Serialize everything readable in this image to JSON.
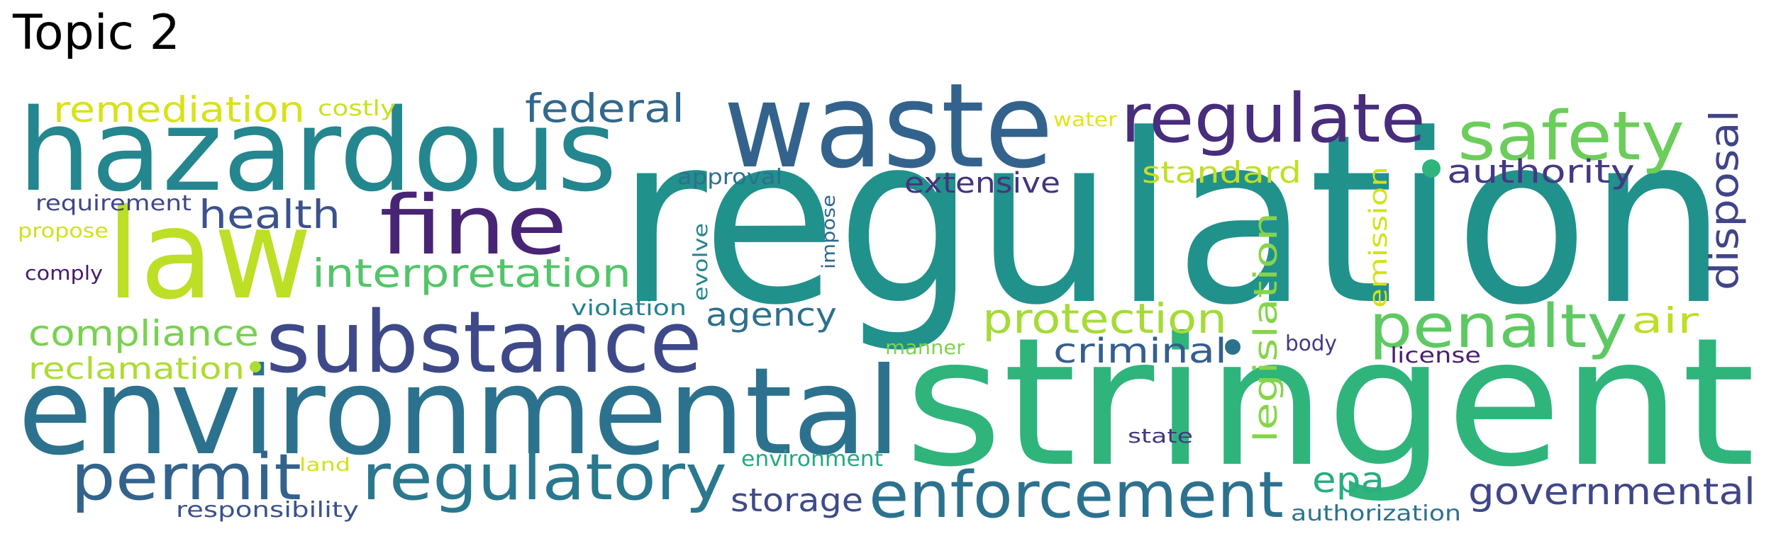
{
  "title": "Topic 2",
  "words": [
    {
      "text": "regulation",
      "color": "#21918c"
    },
    {
      "text": "stringent",
      "color": "#2fb47c"
    },
    {
      "text": "environmental",
      "color": "#2c728e"
    },
    {
      "text": "hazardous",
      "color": "#24868e"
    },
    {
      "text": "waste",
      "color": "#33638d"
    },
    {
      "text": "law",
      "color": "#bddf26"
    },
    {
      "text": "substance",
      "color": "#3e4989"
    },
    {
      "text": "fine",
      "color": "#482475"
    },
    {
      "text": "regulate",
      "color": "#472d7b"
    },
    {
      "text": "safety",
      "color": "#6ccd5a"
    },
    {
      "text": "enforcement",
      "color": "#2c728e"
    },
    {
      "text": "regulatory",
      "color": "#2a788e"
    },
    {
      "text": "permit",
      "color": "#33638d"
    },
    {
      "text": "penalty",
      "color": "#5ec962"
    },
    {
      "text": "federal",
      "color": "#31688e"
    },
    {
      "text": "remediation",
      "color": "#d8e219"
    },
    {
      "text": "interpretation",
      "color": "#52c569"
    },
    {
      "text": "compliance",
      "color": "#7ad151"
    },
    {
      "text": "health",
      "color": "#3b528b"
    },
    {
      "text": "protection",
      "color": "#a5db36"
    },
    {
      "text": "governmental",
      "color": "#404688"
    },
    {
      "text": "disposal",
      "color": "#414487"
    },
    {
      "text": "authority",
      "color": "#443983"
    },
    {
      "text": "reclamation",
      "color": "#addc30"
    },
    {
      "text": "agency",
      "color": "#2d708e"
    },
    {
      "text": "criminal",
      "color": "#355f8d"
    },
    {
      "text": "extensive",
      "color": "#46337f"
    },
    {
      "text": "standard",
      "color": "#c2df23"
    },
    {
      "text": "epa",
      "color": "#28ae80"
    },
    {
      "text": "storage",
      "color": "#3e4a89"
    },
    {
      "text": "legislation",
      "color": "#86d549"
    },
    {
      "text": "emission",
      "color": "#d2e21b"
    },
    {
      "text": "air",
      "color": "#bddf26"
    },
    {
      "text": "requirement",
      "color": "#3f4788"
    },
    {
      "text": "costly",
      "color": "#cae11f"
    },
    {
      "text": "approval",
      "color": "#2e6f8e"
    },
    {
      "text": "water",
      "color": "#e2e418"
    },
    {
      "text": "propose",
      "color": "#d0e11c"
    },
    {
      "text": "comply",
      "color": "#481a6c"
    },
    {
      "text": "violation",
      "color": "#26818e"
    },
    {
      "text": "evolve",
      "color": "#25848e"
    },
    {
      "text": "impose",
      "color": "#31688e"
    },
    {
      "text": "manner",
      "color": "#7fd34e"
    },
    {
      "text": "body",
      "color": "#443a83"
    },
    {
      "text": "license",
      "color": "#481f70"
    },
    {
      "text": "state",
      "color": "#453781"
    },
    {
      "text": "land",
      "color": "#d2e21b"
    },
    {
      "text": "environment",
      "color": "#23a983"
    },
    {
      "text": "responsibility",
      "color": "#3b528b"
    },
    {
      "text": "authorization",
      "color": "#2c728e"
    }
  ]
}
